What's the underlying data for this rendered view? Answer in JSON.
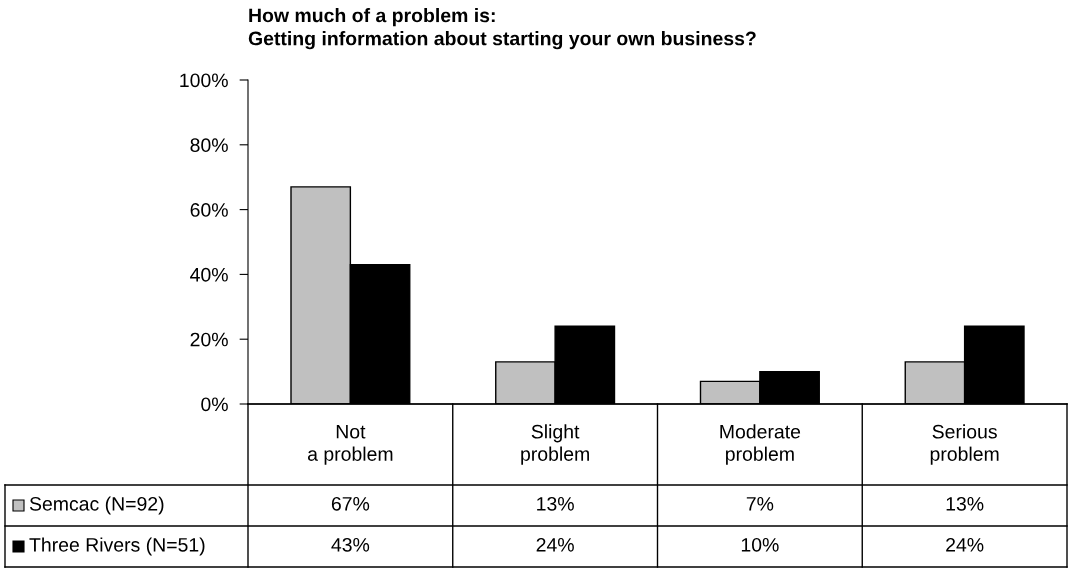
{
  "chart_data": {
    "type": "bar",
    "title": "How much of a problem is:\nGetting information about starting your own business?",
    "categories": [
      "Not\na problem",
      "Slight\nproblem",
      "Moderate\nproblem",
      "Serious\nproblem"
    ],
    "series": [
      {
        "name": "Semcac (N=92)",
        "color": "#c0c0c0",
        "values": [
          67,
          13,
          7,
          13
        ],
        "value_labels": [
          "67%",
          "13%",
          "7%",
          "13%"
        ]
      },
      {
        "name": "Three Rivers (N=51)",
        "color": "#000000",
        "values": [
          43,
          24,
          10,
          24
        ],
        "value_labels": [
          "43%",
          "24%",
          "10%",
          "24%"
        ]
      }
    ],
    "ylim": [
      0,
      100
    ],
    "yticks": [
      {
        "value": 0,
        "label": "0%"
      },
      {
        "value": 20,
        "label": "20%"
      },
      {
        "value": 40,
        "label": "40%"
      },
      {
        "value": 60,
        "label": "60%"
      },
      {
        "value": 80,
        "label": "80%"
      },
      {
        "value": 100,
        "label": "100%"
      }
    ],
    "grid": false,
    "legend": "bottom"
  }
}
